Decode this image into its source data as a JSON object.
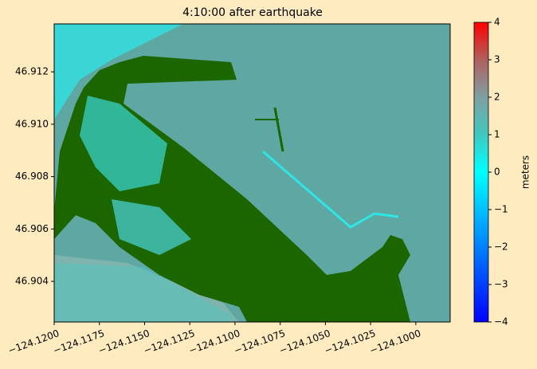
{
  "chart_data": {
    "type": "image",
    "title": "4:10:00 after earthquake",
    "xlim": [
      -124.12,
      -124.0981
    ],
    "ylim": [
      46.90245,
      46.91383
    ],
    "xticks": [
      {
        "value": -124.12,
        "label": "−124.1200"
      },
      {
        "value": -124.1175,
        "label": "−124.1175"
      },
      {
        "value": -124.115,
        "label": "−124.1150"
      },
      {
        "value": -124.1125,
        "label": "−124.1125"
      },
      {
        "value": -124.11,
        "label": "−124.1100"
      },
      {
        "value": -124.1075,
        "label": "−124.1075"
      },
      {
        "value": -124.105,
        "label": "−124.1050"
      },
      {
        "value": -124.1025,
        "label": "−124.1025"
      },
      {
        "value": -124.1,
        "label": "−124.1000"
      }
    ],
    "yticks": [
      46.904,
      46.906,
      46.908,
      {
        "value": 46.91,
        "label": "46.910"
      },
      46.912
    ],
    "colorbar": {
      "label": "meters",
      "lim": [
        -4,
        4
      ],
      "colors": [
        "#0000ff",
        "#0040ff",
        "#0080ff",
        "#00c0ff",
        "#00ffff",
        "#40c8c0",
        "#7fa0a0",
        "#b06060",
        "#ff0000"
      ],
      "ticks": [
        {
          "value": -4,
          "label": "−4"
        },
        {
          "value": -3,
          "label": "−3"
        },
        {
          "value": -2,
          "label": "−2"
        },
        {
          "value": -1,
          "label": "−1"
        },
        0,
        1,
        2,
        3,
        4
      ]
    }
  }
}
